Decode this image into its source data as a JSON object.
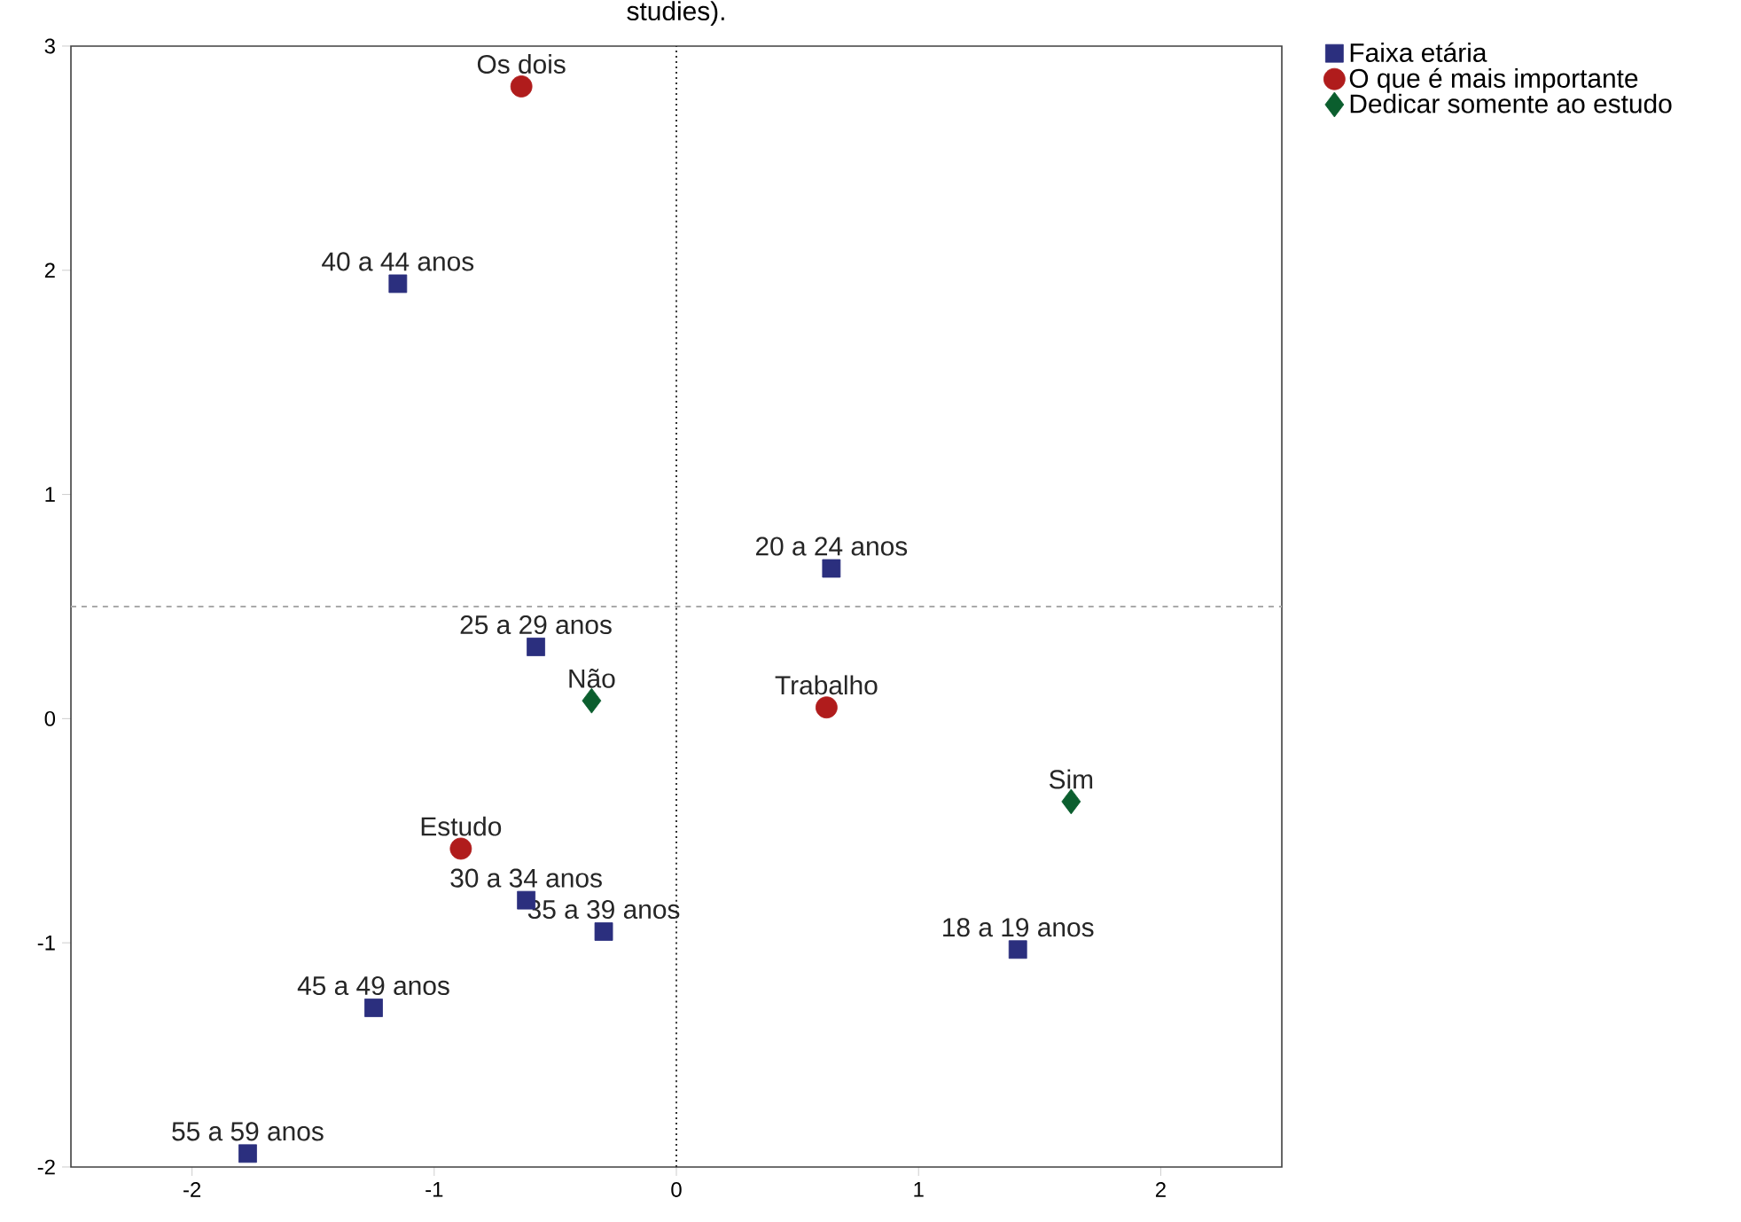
{
  "chart_data": {
    "type": "scatter",
    "title": "studies).",
    "xlim": [
      -2.5,
      2.5
    ],
    "ylim": [
      -2,
      3
    ],
    "xticks": [
      -2,
      -1,
      0,
      1,
      2
    ],
    "yticks": [
      -2,
      -1,
      0,
      1,
      2,
      3
    ],
    "grid": false,
    "legend": "top right",
    "series": [
      {
        "name": "Faixa etária",
        "color": "#2b2f7e",
        "marker": "square",
        "x": [
          -1.15,
          0.64,
          -0.58,
          -0.62,
          -0.3,
          1.41,
          -1.25,
          -1.77
        ],
        "values": [
          1.94,
          0.67,
          0.32,
          -0.81,
          -0.95,
          -1.03,
          -1.29,
          -1.94
        ]
      },
      {
        "name": "O que é mais importante",
        "color": "#b01c1c",
        "marker": "circle",
        "x": [
          -0.64,
          0.62,
          -0.89
        ],
        "values": [
          2.82,
          0.05,
          -0.58
        ]
      },
      {
        "name": "Dedicar somente ao estudo",
        "color": "#0b5e2e",
        "marker": "diamond",
        "x": [
          -0.35,
          1.63
        ],
        "values": [
          0.08,
          -0.37
        ]
      }
    ],
    "ref_lines": [
      {
        "axis": "x",
        "value": 0,
        "line_style": "dotted",
        "color": "#333333"
      },
      {
        "axis": "y",
        "value": 0.5,
        "line_style": "dashed",
        "color": "#aaaaaa"
      }
    ],
    "annotations": [
      {
        "text": "40 a 44 anos",
        "x": -1.15,
        "y": 1.94
      },
      {
        "text": "20 a 24 anos",
        "x": 0.64,
        "y": 0.67
      },
      {
        "text": "25 a 29 anos",
        "x": -0.58,
        "y": 0.32
      },
      {
        "text": "30 a 34 anos",
        "x": -0.62,
        "y": -0.81
      },
      {
        "text": "35 a 39 anos",
        "x": -0.3,
        "y": -0.95
      },
      {
        "text": "18 a 19 anos",
        "x": 1.41,
        "y": -1.03
      },
      {
        "text": "45 a 49 anos",
        "x": -1.25,
        "y": -1.29
      },
      {
        "text": "55 a 59 anos",
        "x": -1.77,
        "y": -1.94
      },
      {
        "text": "Os dois",
        "x": -0.64,
        "y": 2.82
      },
      {
        "text": "Trabalho",
        "x": 0.62,
        "y": 0.05
      },
      {
        "text": "Estudo",
        "x": -0.89,
        "y": -0.58
      },
      {
        "text": "Não",
        "x": -0.35,
        "y": 0.08
      },
      {
        "text": "Sim",
        "x": 1.63,
        "y": -0.37
      }
    ]
  }
}
